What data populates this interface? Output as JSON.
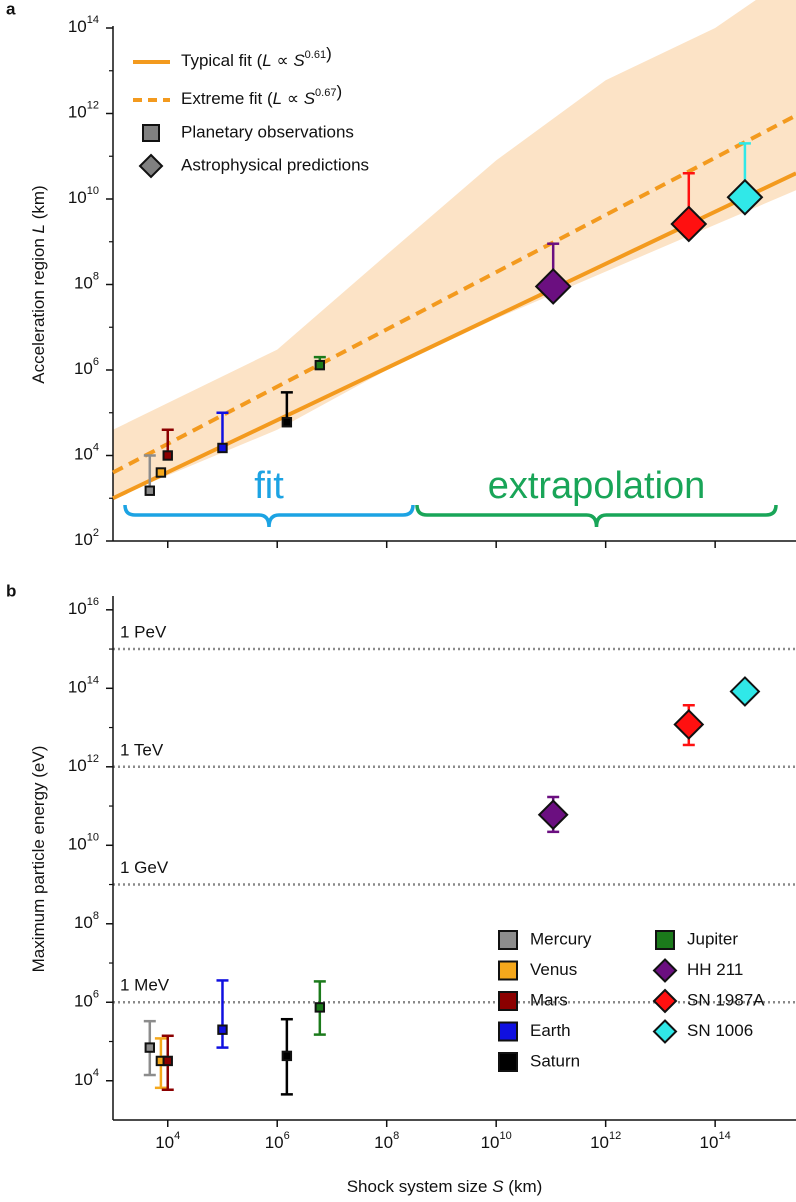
{
  "chart_data": [
    {
      "type": "scatter",
      "panel_label": "a",
      "log_x": true,
      "log_y": true,
      "ylabel": [
        {
          "text": "Acceleration region "
        },
        {
          "text": "L",
          "italic": true
        },
        {
          "text": " (km)"
        }
      ],
      "xlim": [
        1000,
        3000000000000000.0
      ],
      "ylim": [
        100,
        100000000000000.0
      ],
      "xticks": [
        10000.0,
        1000000.0,
        100000000.0,
        10000000000.0,
        1000000000000.0,
        100000000000000.0
      ],
      "yticks": [
        {
          "value": 100,
          "label": "10",
          "exponent": "2"
        },
        {
          "value": 10000.0,
          "label": "10",
          "exponent": "4"
        },
        {
          "value": 1000000.0,
          "label": "10",
          "exponent": "6"
        },
        {
          "value": 100000000.0,
          "label": "10",
          "exponent": "8"
        },
        {
          "value": 10000000000.0,
          "label": "10",
          "exponent": "10"
        },
        {
          "value": 1000000000000.0,
          "label": "10",
          "exponent": "12"
        },
        {
          "value": 100000000000000.0,
          "label": "10",
          "exponent": "14"
        }
      ],
      "yminorticks": [
        1000,
        100000.0,
        10000000.0,
        1000000000.0,
        100000000000.0,
        10000000000000.0
      ],
      "band": {
        "color": "#fce3c6",
        "x": [
          1000,
          1000000.0,
          100000000.0,
          10000000000.0,
          1000000000000.0,
          100000000000000.0,
          3000000000000000.0
        ],
        "lower": [
          1000,
          40000,
          1000000.0,
          16000000.0,
          200000000.0,
          2500000000.0,
          16000000000.0
        ],
        "upper": [
          40000,
          3000000.0,
          500000000.0,
          80000000000.0,
          6000000000000.0,
          100000000000000.0,
          2000000000000000.0
        ]
      },
      "fits": [
        {
          "name": [
            {
              "text": "Typical fit ("
            },
            {
              "text": "L",
              "italic": true
            },
            {
              "text": " ∝ "
            },
            {
              "text": "S",
              "italic": true
            },
            {
              "text": "0.61",
              "sup": true
            },
            {
              "text": ")"
            }
          ],
          "color": "#f39a1e",
          "dashed": false,
          "x": [
            1000,
            3000000000000000.0
          ],
          "values": [
            1000,
            40000000000.0
          ]
        },
        {
          "name": [
            {
              "text": "Extreme fit ("
            },
            {
              "text": "L",
              "italic": true
            },
            {
              "text": " ∝ "
            },
            {
              "text": "S",
              "italic": true
            },
            {
              "text": "0.67",
              "sup": true
            },
            {
              "text": ")"
            }
          ],
          "color": "#f39a1e",
          "dashed": true,
          "x": [
            1000,
            3000000000000000.0
          ],
          "values": [
            4000,
            900000000000.0
          ]
        }
      ],
      "marker_legend": [
        {
          "name": "Planetary observations",
          "marker": "square",
          "color": "#808080"
        },
        {
          "name": "Astrophysical predictions",
          "marker": "diamond",
          "color": "#808080"
        }
      ],
      "points": {
        "x": [
          4700,
          7500,
          10000,
          100000,
          1500000,
          6000000,
          110000000000.0,
          33000000000000.0,
          350000000000000.0
        ],
        "y": [
          1500,
          4000,
          10000,
          15000,
          60000,
          1300000,
          90000000.0,
          2600000000.0,
          11000000000.0
        ],
        "upper": [
          10000,
          null,
          40000,
          100000,
          300000,
          2000000,
          900000000.0,
          40000000000.0,
          200000000000.0
        ],
        "colors": [
          "#8c8c8c",
          "#f5a81c",
          "#8b0000",
          "#1010e0",
          "#000000",
          "#1b7a1b",
          "#6b0f80",
          "#ff1010",
          "#30e8e8"
        ],
        "markers": [
          "square",
          "square",
          "square",
          "square",
          "square",
          "square",
          "diamond",
          "diamond",
          "diamond"
        ]
      },
      "annotations": [
        {
          "text": "fit",
          "color": "#1ca3e3"
        },
        {
          "text": "extrapolation",
          "color": "#19a558"
        }
      ]
    },
    {
      "type": "scatter",
      "panel_label": "b",
      "log_x": true,
      "log_y": true,
      "ylabel": [
        {
          "text": "Maximum particle energy (eV)"
        }
      ],
      "xlabel": [
        {
          "text": "Shock system size "
        },
        {
          "text": "S",
          "italic": true
        },
        {
          "text": " (km)"
        }
      ],
      "xlim": [
        1000,
        3000000000000000.0
      ],
      "ylim": [
        1000,
        2e+16
      ],
      "xticks": [
        {
          "value": 10000.0,
          "label": "10",
          "exponent": "4"
        },
        {
          "value": 1000000.0,
          "label": "10",
          "exponent": "6"
        },
        {
          "value": 100000000.0,
          "label": "10",
          "exponent": "8"
        },
        {
          "value": 10000000000.0,
          "label": "10",
          "exponent": "10"
        },
        {
          "value": 1000000000000.0,
          "label": "10",
          "exponent": "12"
        },
        {
          "value": 100000000000000.0,
          "label": "10",
          "exponent": "14"
        }
      ],
      "yticks": [
        {
          "value": 10000.0,
          "label": "10",
          "exponent": "4"
        },
        {
          "value": 1000000.0,
          "label": "10",
          "exponent": "6"
        },
        {
          "value": 100000000.0,
          "label": "10",
          "exponent": "8"
        },
        {
          "value": 10000000000.0,
          "label": "10",
          "exponent": "10"
        },
        {
          "value": 1000000000000.0,
          "label": "10",
          "exponent": "12"
        },
        {
          "value": 100000000000000.0,
          "label": "10",
          "exponent": "14"
        },
        {
          "value": 1e+16,
          "label": "10",
          "exponent": "16"
        }
      ],
      "yminorticks": [
        100000.0,
        10000000.0,
        1000000000.0,
        100000000000.0,
        10000000000000.0,
        1000000000000000.0
      ],
      "reference_lines": [
        {
          "value": 1000000000000000.0,
          "label": "1 PeV"
        },
        {
          "value": 1000000000000.0,
          "label": "1 TeV"
        },
        {
          "value": 1000000000.0,
          "label": "1 GeV"
        },
        {
          "value": 1000000.0,
          "label": "1 MeV"
        }
      ],
      "series": [
        {
          "name": "Mercury",
          "color": "#8c8c8c",
          "marker": "square",
          "x": 4700,
          "y": 70000,
          "lower": 14000,
          "upper": 330000
        },
        {
          "name": "Venus",
          "color": "#f5a81c",
          "marker": "square",
          "x": 7500,
          "y": 32000,
          "lower": 6600,
          "upper": 120000
        },
        {
          "name": "Mars",
          "color": "#8b0000",
          "marker": "square",
          "x": 10000,
          "y": 32000,
          "lower": 5900,
          "upper": 140000
        },
        {
          "name": "Earth",
          "color": "#1010e0",
          "marker": "square",
          "x": 100000,
          "y": 200000,
          "lower": 70000,
          "upper": 3600000
        },
        {
          "name": "Saturn",
          "color": "#000000",
          "marker": "square",
          "x": 1500000,
          "y": 43000,
          "lower": 4500,
          "upper": 370000
        },
        {
          "name": "Jupiter",
          "color": "#1b7a1b",
          "marker": "square",
          "x": 6000000,
          "y": 740000,
          "lower": 150000,
          "upper": 3400000
        },
        {
          "name": "HH 211",
          "color": "#6b0f80",
          "marker": "diamond",
          "x": 110000000000.0,
          "y": 60000000000.0,
          "lower": 22000000000.0,
          "upper": 170000000000.0
        },
        {
          "name": "SN 1987A",
          "color": "#ff1010",
          "marker": "diamond",
          "x": 33000000000000.0,
          "y": 12000000000000.0,
          "lower": 3600000000000.0,
          "upper": 37000000000000.0
        },
        {
          "name": "SN 1006",
          "color": "#30e8e8",
          "marker": "diamond",
          "x": 350000000000000.0,
          "y": 83000000000000.0,
          "lower": null,
          "upper": null
        }
      ]
    }
  ]
}
